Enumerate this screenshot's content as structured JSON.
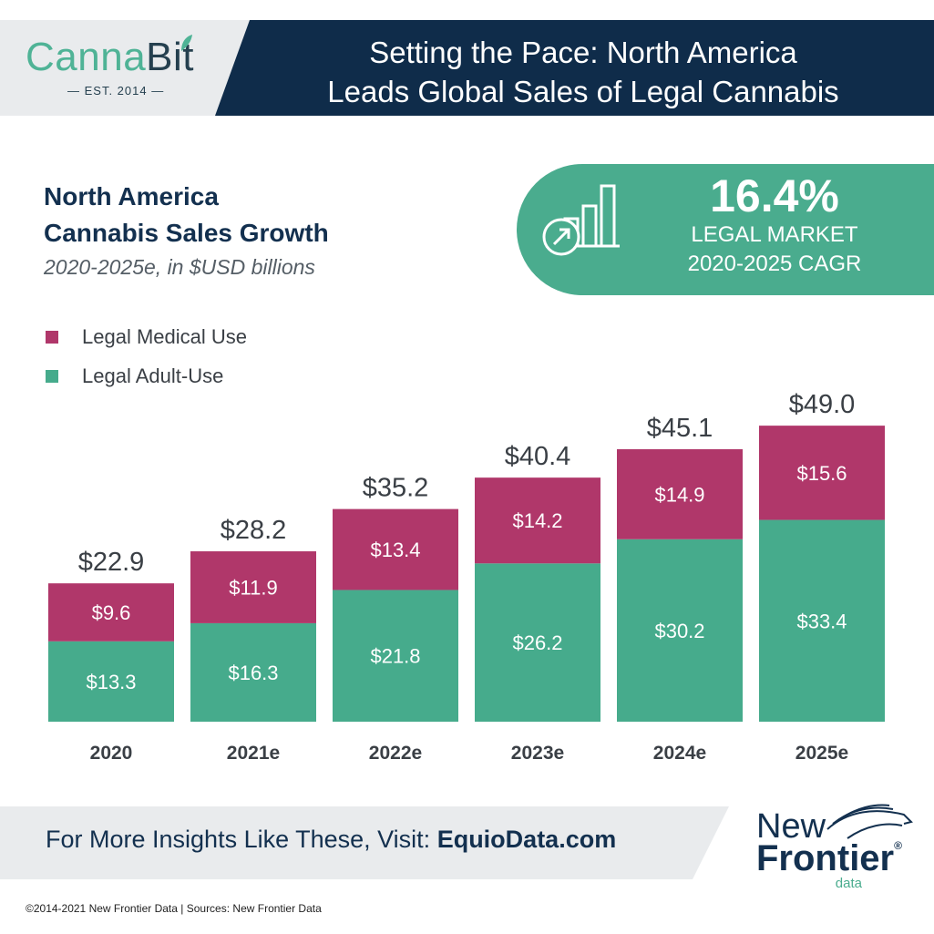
{
  "header": {
    "logo_name_1": "Canna",
    "logo_name_2": "Bit",
    "logo_est": "— EST. 2014 —",
    "title_line1": "Setting the Pace: North America",
    "title_line2": "Leads Global Sales of Legal Cannabis"
  },
  "subheading": {
    "line1": "North America",
    "line2": "Cannabis Sales Growth",
    "line3": "2020-2025e, in $USD billions"
  },
  "cagr": {
    "value": "16.4%",
    "line1": "LEGAL MARKET",
    "line2": "2020-2025 CAGR",
    "icon": "growth-bar-chart-icon"
  },
  "colors": {
    "medical": "#b0376a",
    "adult_use": "#46ab8c",
    "navy": "#0f2c4a",
    "accent_green": "#4aac8e"
  },
  "chart_data": {
    "type": "bar",
    "stacked": true,
    "categories": [
      "2020",
      "2021e",
      "2022e",
      "2023e",
      "2024e",
      "2025e"
    ],
    "series": [
      {
        "name": "Legal Adult-Use",
        "values": [
          13.3,
          16.3,
          21.8,
          26.2,
          30.2,
          33.4
        ],
        "labels": [
          "$13.3",
          "$16.3",
          "$21.8",
          "$26.2",
          "$30.2",
          "$33.4"
        ]
      },
      {
        "name": "Legal Medical Use",
        "values": [
          9.6,
          11.9,
          13.4,
          14.2,
          14.9,
          15.6
        ],
        "labels": [
          "$9.6",
          "$11.9",
          "$13.4",
          "$14.2",
          "$14.9",
          "$15.6"
        ]
      }
    ],
    "totals": [
      22.9,
      28.2,
      35.2,
      40.4,
      45.1,
      49.0
    ],
    "total_labels": [
      "$22.9",
      "$28.2",
      "$35.2",
      "$40.4",
      "$45.1",
      "$49.0"
    ],
    "legend": [
      "Legal Medical Use",
      "Legal Adult-Use"
    ],
    "legend_placement": "top-left",
    "grid": false
  },
  "footer": {
    "cta_prefix": "For More Insights Like These, Visit: ",
    "cta_link": "EquioData.com",
    "brand_new": "New",
    "brand_frontier": "Frontier",
    "brand_data": "data",
    "brand_reg": "®",
    "copyright": "©2014-2021 New Frontier Data | Sources: New Frontier Data"
  }
}
